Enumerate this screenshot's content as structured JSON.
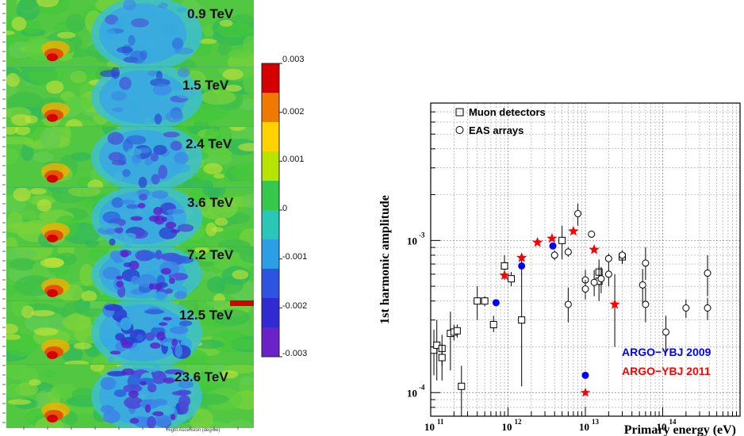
{
  "sky_maps": {
    "panels": [
      {
        "energy_label": "0.9 TeV"
      },
      {
        "energy_label": "1.5 TeV"
      },
      {
        "energy_label": "2.4 TeV"
      },
      {
        "energy_label": "3.6 TeV"
      },
      {
        "energy_label": "7.2 TeV"
      },
      {
        "energy_label": "12.5 TeV"
      },
      {
        "energy_label": "23.6 TeV"
      }
    ],
    "x_axis_title": "Right Ascension (degree)",
    "colorbar": {
      "ticks": [
        "0.003",
        "0.002",
        "0.001",
        "0",
        "-0.001",
        "-0.002",
        "-0.003"
      ],
      "colors": [
        "#d40000",
        "#f07a00",
        "#ffd200",
        "#b7e400",
        "#36c84a",
        "#29c7b8",
        "#2a9fe5",
        "#2e53e0",
        "#2f2ad2",
        "#6a22c8"
      ]
    }
  },
  "chart_data": {
    "type": "scatter",
    "x_scale": "log",
    "y_scale": "log",
    "xlim": [
      100000000000.0,
      1000000000000000.0
    ],
    "ylim": [
      7e-05,
      0.008
    ],
    "xlabel": "Primary energy (eV)",
    "ylabel": "1st harmonic amplitude",
    "x_tick_labels": [
      {
        "base": "10",
        "exp": "11"
      },
      {
        "base": "10",
        "exp": "12"
      },
      {
        "base": "10",
        "exp": "13"
      },
      {
        "base": "10",
        "exp": "14"
      }
    ],
    "y_tick_labels": [
      {
        "base": "10",
        "exp": "-4"
      },
      {
        "base": "10",
        "exp": "-3"
      }
    ],
    "grid": true,
    "legend": [
      {
        "label": "Muon detectors",
        "marker": "open-square"
      },
      {
        "label": "EAS arrays",
        "marker": "open-circle"
      }
    ],
    "annotations": [
      {
        "text": "ARGO−YBJ 2009",
        "color": "#0000ff"
      },
      {
        "text": "ARGO−YBJ 2011",
        "color": "#ff0000"
      }
    ],
    "series": [
      {
        "name": "Muon detectors",
        "marker": "open-square",
        "points": [
          {
            "x": 110000000000.0,
            "y": 0.00019,
            "lo": 0.00013,
            "hi": 0.00026
          },
          {
            "x": 120000000000.0,
            "y": 0.000205,
            "lo": 0.00012,
            "hi": 0.0003
          },
          {
            "x": 140000000000.0,
            "y": 0.000195,
            "lo": 0.00015,
            "hi": 0.00024
          },
          {
            "x": 140000000000.0,
            "y": 0.00017,
            "lo": 0.00012,
            "hi": 0.00021
          },
          {
            "x": 180000000000.0,
            "y": 0.000245,
            "lo": 0.00014,
            "hi": 0.00034
          },
          {
            "x": 200000000000.0,
            "y": 0.00025,
            "lo": 0.00022,
            "hi": 0.00028
          },
          {
            "x": 220000000000.0,
            "y": 0.000255,
            "lo": 0.00023,
            "hi": 0.00028
          },
          {
            "x": 250000000000.0,
            "y": 0.00011,
            "lo": 7e-05,
            "hi": 0.00015
          },
          {
            "x": 400000000000.0,
            "y": 0.0004,
            "lo": 0.0003,
            "hi": 0.0005
          },
          {
            "x": 500000000000.0,
            "y": 0.0004,
            "lo": 0.00037,
            "hi": 0.00043
          },
          {
            "x": 650000000000.0,
            "y": 0.00028,
            "lo": 0.00025,
            "hi": 0.00032
          },
          {
            "x": 900000000000.0,
            "y": 0.00068,
            "lo": 0.00055,
            "hi": 0.0008
          },
          {
            "x": 1100000000000.0,
            "y": 0.00056,
            "lo": 0.0005,
            "hi": 0.00062
          },
          {
            "x": 1500000000000.0,
            "y": 0.0003,
            "lo": 0.00011,
            "hi": 0.0008
          },
          {
            "x": 5000000000000.0,
            "y": 0.001,
            "lo": 0.00075,
            "hi": 0.00125
          },
          {
            "x": 15000000000000.0,
            "y": 0.00062,
            "lo": 0.0005,
            "hi": 0.00075
          },
          {
            "x": 15000000000000.0,
            "y": 0.00054,
            "lo": 0.0004,
            "hi": 0.00068
          },
          {
            "x": 30000000000000.0,
            "y": 0.00078,
            "lo": 0.0007,
            "hi": 0.00086
          }
        ]
      },
      {
        "name": "EAS arrays",
        "marker": "open-circle",
        "points": [
          {
            "x": 4000000000000.0,
            "y": 0.0008,
            "lo": 0.00074,
            "hi": 0.00086
          },
          {
            "x": 6000000000000.0,
            "y": 0.00084,
            "lo": 0.00078,
            "hi": 0.0009
          },
          {
            "x": 6000000000000.0,
            "y": 0.00038,
            "lo": 0.00029,
            "hi": 0.00049
          },
          {
            "x": 8000000000000.0,
            "y": 0.0015,
            "lo": 0.00125,
            "hi": 0.00175
          },
          {
            "x": 10000000000000.0,
            "y": 0.00055,
            "lo": 0.00047,
            "hi": 0.00064
          },
          {
            "x": 10000000000000.0,
            "y": 0.00048,
            "lo": 0.00041,
            "hi": 0.00055
          },
          {
            "x": 12000000000000.0,
            "y": 0.0011,
            "lo": 0.00105,
            "hi": 0.00115
          },
          {
            "x": 13000000000000.0,
            "y": 0.00053,
            "lo": 0.00043,
            "hi": 0.00064
          },
          {
            "x": 16000000000000.0,
            "y": 0.00056,
            "lo": 0.00045,
            "hi": 0.00067
          },
          {
            "x": 20000000000000.0,
            "y": 0.00076,
            "lo": 0.0007,
            "hi": 0.00082
          },
          {
            "x": 20000000000000.0,
            "y": 0.0006,
            "lo": 0.0005,
            "hi": 0.0007
          },
          {
            "x": 30000000000000.0,
            "y": 0.0008,
            "lo": 0.00074,
            "hi": 0.00086
          },
          {
            "x": 55000000000000.0,
            "y": 0.00051,
            "lo": 0.00039,
            "hi": 0.00065
          },
          {
            "x": 60000000000000.0,
            "y": 0.00071,
            "lo": 0.00055,
            "hi": 0.0009
          },
          {
            "x": 60000000000000.0,
            "y": 0.00038,
            "lo": 0.00029,
            "hi": 0.00049
          },
          {
            "x": 110000000000000.0,
            "y": 0.00025,
            "lo": 0.00018,
            "hi": 0.00032
          },
          {
            "x": 200000000000000.0,
            "y": 0.00036,
            "lo": 0.00031,
            "hi": 0.00041
          },
          {
            "x": 380000000000000.0,
            "y": 0.00061,
            "lo": 0.00043,
            "hi": 0.0008
          },
          {
            "x": 380000000000000.0,
            "y": 0.00036,
            "lo": 0.0003,
            "hi": 0.00042
          }
        ]
      },
      {
        "name": "ARGO-YBJ 2009",
        "marker": "filled-circle",
        "color": "#0000ff",
        "points": [
          {
            "x": 700000000000.0,
            "y": 0.00039
          },
          {
            "x": 1500000000000.0,
            "y": 0.00068
          },
          {
            "x": 3800000000000.0,
            "y": 0.00092
          }
        ]
      },
      {
        "name": "ARGO-YBJ 2011",
        "marker": "star",
        "color": "#ff0000",
        "points": [
          {
            "x": 900000000000.0,
            "y": 0.00059
          },
          {
            "x": 1500000000000.0,
            "y": 0.00077
          },
          {
            "x": 2400000000000.0,
            "y": 0.00097
          },
          {
            "x": 3700000000000.0,
            "y": 0.00103
          },
          {
            "x": 7000000000000.0,
            "y": 0.00115
          },
          {
            "x": 13000000000000.0,
            "y": 0.00087
          },
          {
            "x": 24000000000000.0,
            "y": 0.00038,
            "lo": 0.0002,
            "hi": 0.0006
          }
        ]
      }
    ]
  }
}
